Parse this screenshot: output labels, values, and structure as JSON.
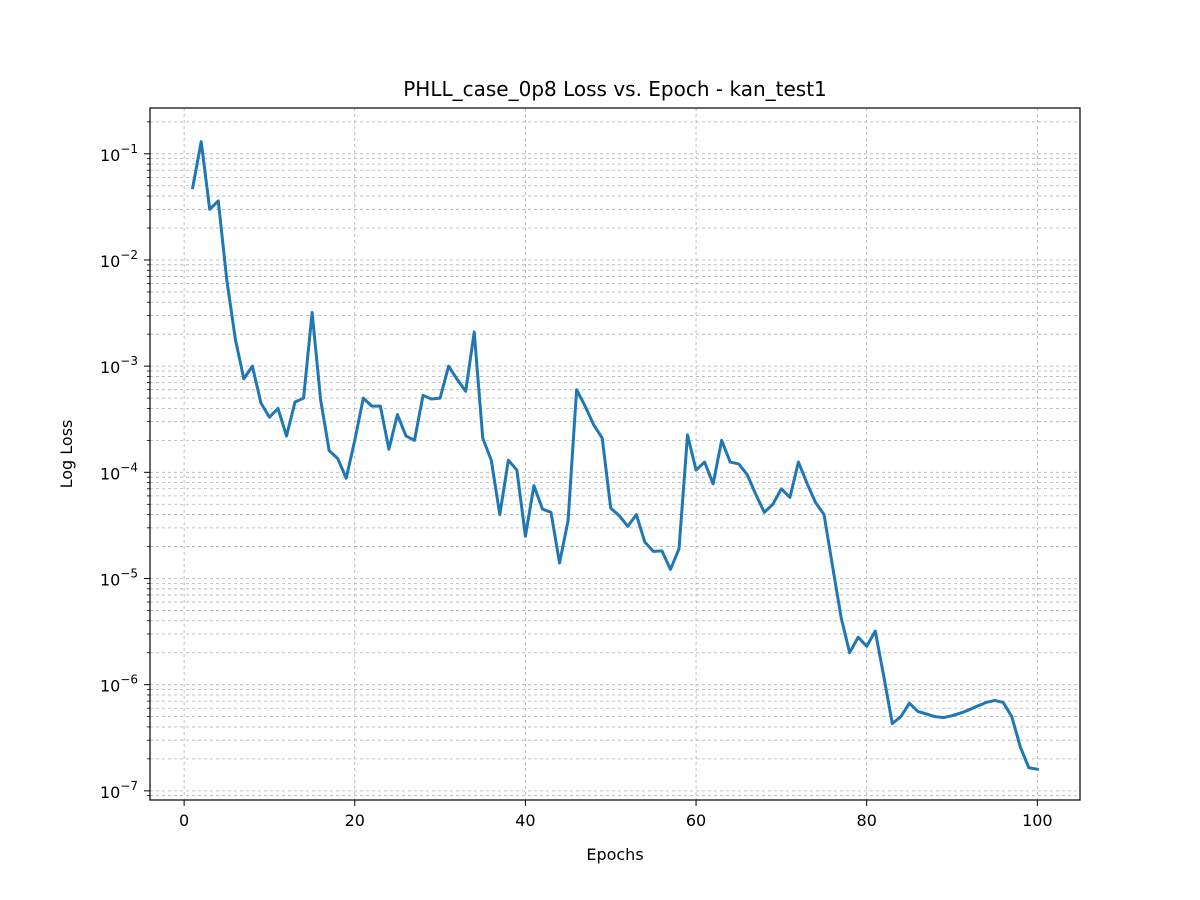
{
  "chart_data": {
    "type": "line",
    "title": "PHLL_case_0p8 Loss vs. Epoch - kan_test1",
    "xlabel": "Epochs",
    "ylabel": "Log Loss",
    "xlim": [
      -4,
      105
    ],
    "ylim": [
      8.2e-08,
      0.27
    ],
    "yscale": "log",
    "grid": true,
    "x_ticks": [
      0,
      20,
      40,
      60,
      80,
      100
    ],
    "x_tick_labels": [
      "0",
      "20",
      "40",
      "60",
      "80",
      "100"
    ],
    "y_ticks": [
      1e-07,
      1e-06,
      1e-05,
      0.0001,
      0.001,
      0.01,
      0.1
    ],
    "y_tick_mantissa": [
      "10",
      "10",
      "10",
      "10",
      "10",
      "10",
      "10"
    ],
    "y_tick_exponents": [
      "−7",
      "−6",
      "−5",
      "−4",
      "−3",
      "−2",
      "−1"
    ],
    "series_color": "#1f77b4",
    "series": [
      {
        "x": [
          1,
          2,
          3,
          4,
          5,
          6,
          7,
          8,
          9,
          10,
          11,
          12,
          13,
          14,
          15,
          16,
          17,
          18,
          19,
          20,
          21,
          22,
          23,
          24,
          25,
          26,
          27,
          28,
          29,
          30,
          31,
          32,
          33,
          34,
          35,
          36,
          37,
          38,
          39,
          40,
          41,
          42,
          43,
          44,
          45,
          46,
          47,
          48,
          49,
          50,
          51,
          52,
          53,
          54,
          55,
          56,
          57,
          58,
          59,
          60,
          61,
          62,
          63,
          64,
          65,
          66,
          67,
          68,
          69,
          70,
          71,
          72,
          73,
          74,
          75,
          76,
          77,
          78,
          79,
          80,
          81,
          82,
          83,
          84,
          85,
          86,
          87,
          88,
          89,
          90,
          91,
          92,
          93,
          94,
          95,
          96,
          97,
          98,
          99,
          100
        ],
        "values": [
          0.048,
          0.13,
          0.03,
          0.036,
          0.0065,
          0.0018,
          0.00076,
          0.001,
          0.00045,
          0.00033,
          0.0004,
          0.00022,
          0.00046,
          0.0005,
          0.0032,
          0.00048,
          0.00016,
          0.000135,
          8.8e-05,
          0.0002,
          0.0005,
          0.00042,
          0.00042,
          0.000165,
          0.00035,
          0.00022,
          0.0002,
          0.00053,
          0.00049,
          0.0005,
          0.001,
          0.00075,
          0.00058,
          0.0021,
          0.00021,
          0.00013,
          4e-05,
          0.00013,
          0.000105,
          2.5e-05,
          7.5e-05,
          4.5e-05,
          4.2e-05,
          1.4e-05,
          3.5e-05,
          0.0006,
          0.00042,
          0.00028,
          0.00021,
          4.6e-05,
          3.9e-05,
          3.1e-05,
          4e-05,
          2.2e-05,
          1.8e-05,
          1.82e-05,
          1.22e-05,
          1.9e-05,
          0.000225,
          0.000105,
          0.000125,
          7.8e-05,
          0.0002,
          0.000125,
          0.00012,
          9.5e-05,
          6.2e-05,
          4.2e-05,
          5e-05,
          7e-05,
          5.8e-05,
          0.000125,
          7.9e-05,
          5.2e-05,
          4e-05,
          1.3e-05,
          4.3e-06,
          2e-06,
          2.8e-06,
          2.3e-06,
          3.2e-06,
          1.2e-06,
          4.3e-07,
          5e-07,
          6.7e-07,
          5.6e-07,
          5.3e-07,
          5e-07,
          4.9e-07,
          5.1e-07,
          5.4e-07,
          5.8e-07,
          6.3e-07,
          6.8e-07,
          7.1e-07,
          6.8e-07,
          5e-07,
          2.6e-07,
          1.65e-07,
          1.6e-07
        ]
      }
    ]
  }
}
